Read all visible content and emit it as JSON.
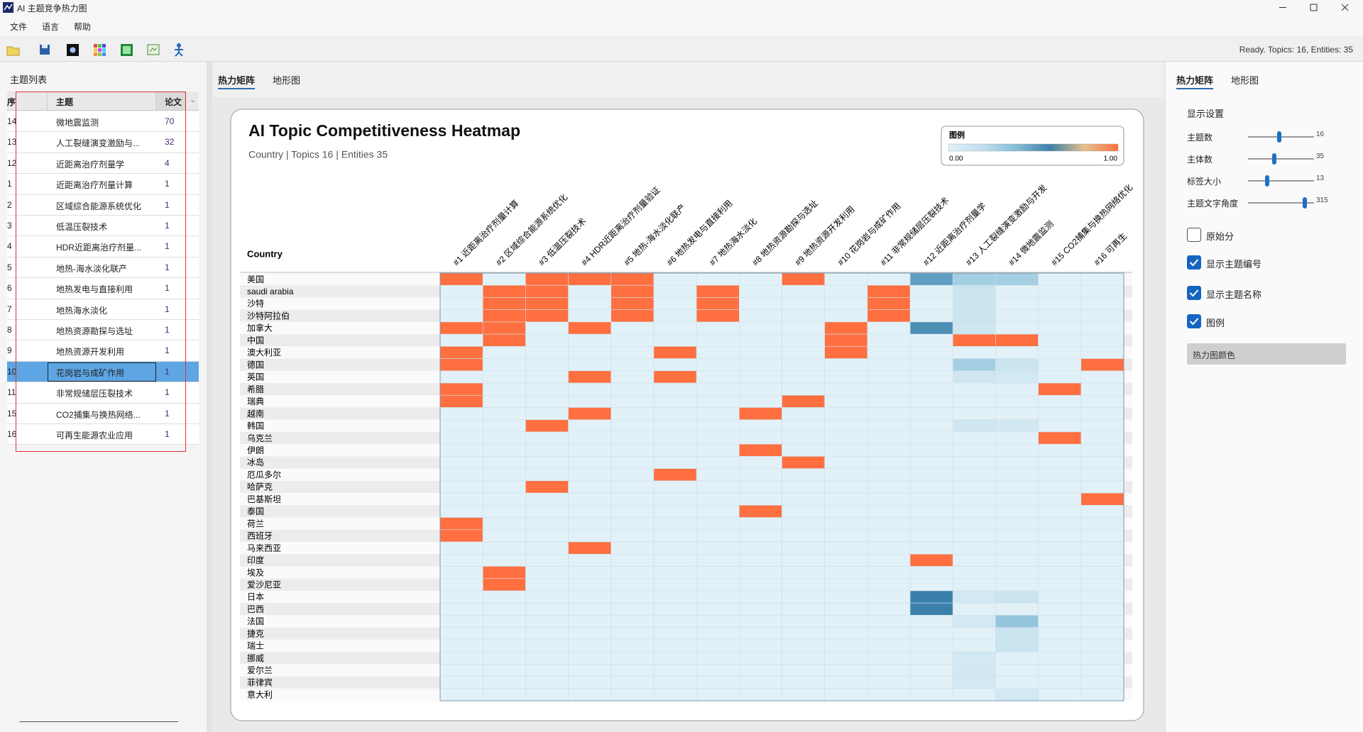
{
  "window": {
    "title": "AI 主题竞争热力图"
  },
  "menu": [
    "文件",
    "语言",
    "帮助"
  ],
  "status": "Ready. Topics: 16, Entities: 35",
  "topic_list": {
    "title": "主题列表",
    "columns": [
      "序",
      "主题",
      "论文"
    ],
    "selected_row": 12,
    "rows": [
      [
        14,
        "微地震监测",
        70
      ],
      [
        13,
        "人工裂缝演变激励与...",
        32
      ],
      [
        12,
        "近距离治疗剂量学",
        4
      ],
      [
        1,
        "近距离治疗剂量计算",
        1
      ],
      [
        2,
        "区域综合能源系统优化",
        1
      ],
      [
        3,
        "低温压裂技术",
        1
      ],
      [
        4,
        "HDR近距离治疗剂量...",
        1
      ],
      [
        5,
        "地热-海水淡化联产",
        1
      ],
      [
        6,
        "地热发电与直接利用",
        1
      ],
      [
        7,
        "地热海水淡化",
        1
      ],
      [
        8,
        "地热资源勘探与选址",
        1
      ],
      [
        9,
        "地热资源开发利用",
        1
      ],
      [
        10,
        "花岗岩与成矿作用",
        1
      ],
      [
        11,
        "非常规储层压裂技术",
        1
      ],
      [
        15,
        "CO2捕集与换热网络...",
        1
      ],
      [
        16,
        "可再生能源农业应用",
        1
      ]
    ]
  },
  "center_tabs": [
    "热力矩阵",
    "地形图"
  ],
  "heatmap": {
    "title": "AI Topic Competitiveness Heatmap",
    "subtitle": "Country | Topics 16 | Entities 35",
    "row_header": "Country",
    "legend": {
      "title": "图例",
      "range": [
        {
          "value": 0,
          "label": "0.00"
        },
        {
          "value": 1,
          "label": "1.00"
        }
      ],
      "colors": [
        "#e2f1f8",
        "#c2dfed",
        "#86bcd7",
        "#3b80aa",
        "#e4c08c",
        "#ff6f3f"
      ]
    },
    "columns": [
      "#1 近距离治疗剂量计算",
      "#2 区域综合能源系统优化",
      "#3 低温压裂技术",
      "#4 HDR近距离治疗剂量验证",
      "#5 地热-海水淡化联产",
      "#6 地热发电与直接利用",
      "#7 地热海水淡化",
      "#8 地热资源勘探与选址",
      "#9 地热资源开发利用",
      "#10 花岗岩与成矿作用",
      "#11 非常规储层压裂技术",
      "#12 近距离治疗剂量学",
      "#13 人工裂缝演变激励与开发",
      "#14 微地震监测",
      "#15 CO2捕集与换热网络优化",
      "#16 可再生"
    ],
    "rows": [
      {
        "label": "美国",
        "values": [
          1,
          0,
          1,
          1,
          1,
          0,
          0,
          0,
          1,
          0,
          0,
          0.5,
          0.3,
          0.3,
          0,
          0
        ]
      },
      {
        "label": "saudi arabia",
        "values": [
          0,
          1,
          1,
          0,
          1,
          0,
          1,
          0,
          0,
          0,
          1,
          0,
          0.15,
          0,
          0,
          0
        ]
      },
      {
        "label": "沙特",
        "values": [
          0,
          1,
          1,
          0,
          1,
          0,
          1,
          0,
          0,
          0,
          1,
          0,
          0.15,
          0,
          0,
          0
        ]
      },
      {
        "label": "沙特阿拉伯",
        "values": [
          0,
          1,
          1,
          0,
          1,
          0,
          1,
          0,
          0,
          0,
          1,
          0,
          0.15,
          0,
          0,
          0
        ]
      },
      {
        "label": "加拿大",
        "values": [
          1,
          1,
          0,
          1,
          0,
          0,
          0,
          0,
          0,
          1,
          0,
          0.55,
          0.12,
          0,
          0,
          0
        ]
      },
      {
        "label": "中国",
        "values": [
          0,
          1,
          0,
          0,
          0,
          0,
          0,
          0,
          0,
          1,
          0,
          0,
          1,
          1,
          0,
          0
        ]
      },
      {
        "label": "澳大利亚",
        "values": [
          1,
          0,
          0,
          0,
          0,
          1,
          0,
          0,
          0,
          1,
          0,
          0,
          0,
          0,
          0,
          0
        ]
      },
      {
        "label": "德国",
        "values": [
          1,
          0,
          0,
          0,
          0,
          0,
          0,
          0,
          0,
          0,
          0,
          0,
          0.3,
          0.15,
          0,
          1
        ]
      },
      {
        "label": "英国",
        "values": [
          0,
          0,
          0,
          1,
          0,
          1,
          0,
          0,
          0,
          0,
          0,
          0,
          0.12,
          0.1,
          0,
          0
        ]
      },
      {
        "label": "希腊",
        "values": [
          1,
          0,
          0,
          0,
          0,
          0,
          0,
          0,
          0,
          0,
          0,
          0,
          0,
          0,
          1,
          0
        ]
      },
      {
        "label": "瑞典",
        "values": [
          1,
          0,
          0,
          0,
          0,
          0,
          0,
          0,
          1,
          0,
          0,
          0,
          0,
          0,
          0,
          0
        ]
      },
      {
        "label": "越南",
        "values": [
          0,
          0,
          0,
          1,
          0,
          0,
          0,
          1,
          0,
          0,
          0,
          0,
          0,
          0,
          0,
          0
        ]
      },
      {
        "label": "韩国",
        "values": [
          0,
          0,
          1,
          0,
          0,
          0,
          0,
          0,
          0,
          0,
          0,
          0,
          0.12,
          0.1,
          0,
          0
        ]
      },
      {
        "label": "乌克兰",
        "values": [
          0,
          0,
          0,
          0,
          0,
          0,
          0,
          0,
          0,
          0,
          0,
          0,
          0,
          0,
          1,
          0
        ]
      },
      {
        "label": "伊朗",
        "values": [
          0,
          0,
          0,
          0,
          0,
          0,
          0,
          1,
          0,
          0,
          0,
          0,
          0,
          0,
          0,
          0
        ]
      },
      {
        "label": "冰岛",
        "values": [
          0,
          0,
          0,
          0,
          0,
          0,
          0,
          0,
          1,
          0,
          0,
          0,
          0,
          0,
          0,
          0
        ]
      },
      {
        "label": "厄瓜多尔",
        "values": [
          0,
          0,
          0,
          0,
          0,
          1,
          0,
          0,
          0,
          0,
          0,
          0,
          0,
          0,
          0,
          0
        ]
      },
      {
        "label": "哈萨克",
        "values": [
          0,
          0,
          1,
          0,
          0,
          0,
          0,
          0,
          0,
          0,
          0,
          0,
          0,
          0,
          0,
          0
        ]
      },
      {
        "label": "巴基斯坦",
        "values": [
          0,
          0,
          0,
          0,
          0,
          0,
          0,
          0,
          0,
          0,
          0,
          0,
          0,
          0,
          0,
          1
        ]
      },
      {
        "label": "泰国",
        "values": [
          0,
          0,
          0,
          0,
          0,
          0,
          0,
          1,
          0,
          0,
          0,
          0,
          0,
          0,
          0,
          0
        ]
      },
      {
        "label": "荷兰",
        "values": [
          1,
          0,
          0,
          0,
          0,
          0,
          0,
          0,
          0,
          0,
          0,
          0,
          0,
          0,
          0,
          0
        ]
      },
      {
        "label": "西班牙",
        "values": [
          1,
          0,
          0,
          0,
          0,
          0,
          0,
          0,
          0,
          0,
          0,
          0,
          0,
          0,
          0,
          0
        ]
      },
      {
        "label": "马来西亚",
        "values": [
          0,
          0,
          0,
          1,
          0,
          0,
          0,
          0,
          0,
          0,
          0,
          0,
          0,
          0,
          0,
          0
        ]
      },
      {
        "label": "印度",
        "values": [
          0,
          0,
          0,
          0,
          0,
          0,
          0,
          0,
          0,
          0,
          0,
          1,
          0,
          0,
          0,
          0
        ]
      },
      {
        "label": "埃及",
        "values": [
          0,
          1,
          0,
          0,
          0,
          0,
          0,
          0,
          0,
          0,
          0,
          0,
          0,
          0,
          0,
          0
        ]
      },
      {
        "label": "爱沙尼亚",
        "values": [
          0,
          1,
          0,
          0,
          0,
          0,
          0,
          0,
          0,
          0,
          0,
          0,
          0,
          0,
          0,
          0
        ]
      },
      {
        "label": "日本",
        "values": [
          0,
          0,
          0,
          0,
          0,
          0,
          0,
          0,
          0,
          0,
          0,
          0.6,
          0.1,
          0.15,
          0,
          0
        ]
      },
      {
        "label": "巴西",
        "values": [
          0,
          0,
          0,
          0,
          0,
          0,
          0,
          0,
          0,
          0,
          0,
          0.6,
          0,
          0,
          0,
          0
        ]
      },
      {
        "label": "法国",
        "values": [
          0,
          0,
          0,
          0,
          0,
          0,
          0,
          0,
          0,
          0,
          0,
          0,
          0.1,
          0.35,
          0,
          0
        ]
      },
      {
        "label": "捷克",
        "values": [
          0,
          0,
          0,
          0,
          0,
          0,
          0,
          0,
          0,
          0,
          0,
          0,
          0,
          0.15,
          0,
          0
        ]
      },
      {
        "label": "瑞士",
        "values": [
          0,
          0,
          0,
          0,
          0,
          0,
          0,
          0,
          0,
          0,
          0,
          0,
          0,
          0.15,
          0,
          0
        ]
      },
      {
        "label": "挪威",
        "values": [
          0,
          0,
          0,
          0,
          0,
          0,
          0,
          0,
          0,
          0,
          0,
          0,
          0.1,
          0,
          0,
          0
        ]
      },
      {
        "label": "爱尔兰",
        "values": [
          0,
          0,
          0,
          0,
          0,
          0,
          0,
          0,
          0,
          0,
          0,
          0,
          0.1,
          0,
          0,
          0
        ]
      },
      {
        "label": "菲律宾",
        "values": [
          0,
          0,
          0,
          0,
          0,
          0,
          0,
          0,
          0,
          0,
          0,
          0,
          0.1,
          0,
          0,
          0
        ]
      },
      {
        "label": "意大利",
        "values": [
          0,
          0,
          0,
          0,
          0,
          0,
          0,
          0,
          0,
          0,
          0,
          0,
          0,
          0.1,
          0,
          0
        ]
      }
    ]
  },
  "settings": {
    "tabs": [
      "热力矩阵",
      "地形图"
    ],
    "title": "显示设置",
    "sliders": [
      {
        "label": "主题数",
        "value": 16
      },
      {
        "label": "主体数",
        "value": 35
      },
      {
        "label": "标签大小",
        "value": 13
      },
      {
        "label": "主题文字角度",
        "value": 315
      }
    ],
    "checkboxes": [
      {
        "label": "原始分",
        "checked": false
      },
      {
        "label": "显示主题编号",
        "checked": true
      },
      {
        "label": "显示主题名称",
        "checked": true
      },
      {
        "label": "图例",
        "checked": true
      }
    ],
    "button": "热力图颜色"
  }
}
